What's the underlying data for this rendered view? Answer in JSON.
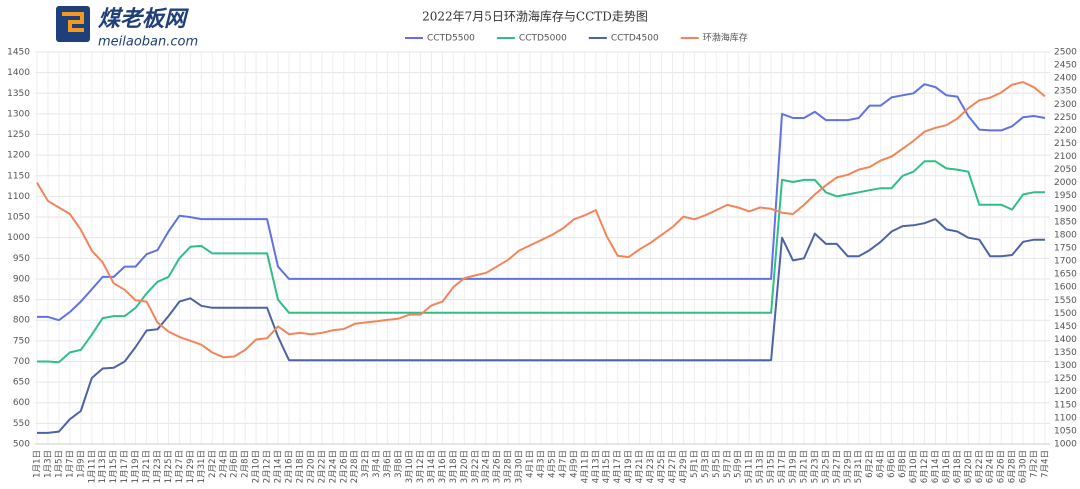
{
  "logo": {
    "name": "煤老板网",
    "url": "meilaoban.com"
  },
  "chart_data": {
    "type": "line",
    "title": "2022年7月5日环渤海库存与CCTD走势图",
    "categories": [
      "1月1日",
      "1月3日",
      "1月5日",
      "1月7日",
      "1月9日",
      "1月11日",
      "1月13日",
      "1月15日",
      "1月17日",
      "1月19日",
      "1月21日",
      "1月23日",
      "1月25日",
      "1月27日",
      "1月29日",
      "1月31日",
      "2月2日",
      "2月4日",
      "2月6日",
      "2月8日",
      "2月10日",
      "2月12日",
      "2月14日",
      "2月16日",
      "2月18日",
      "2月20日",
      "2月22日",
      "2月24日",
      "2月26日",
      "2月28日",
      "3月2日",
      "3月4日",
      "3月6日",
      "3月8日",
      "3月10日",
      "3月12日",
      "3月14日",
      "3月16日",
      "3月18日",
      "3月20日",
      "3月22日",
      "3月24日",
      "3月26日",
      "3月28日",
      "3月30日",
      "4月1日",
      "4月3日",
      "4月5日",
      "4月7日",
      "4月9日",
      "4月11日",
      "4月13日",
      "4月15日",
      "4月17日",
      "4月19日",
      "4月21日",
      "4月23日",
      "4月25日",
      "4月27日",
      "4月29日",
      "5月1日",
      "5月3日",
      "5月5日",
      "5月7日",
      "5月9日",
      "5月11日",
      "5月13日",
      "5月15日",
      "5月17日",
      "5月19日",
      "5月21日",
      "5月23日",
      "5月25日",
      "5月27日",
      "5月29日",
      "5月31日",
      "6月2日",
      "6月4日",
      "6月6日",
      "6月8日",
      "6月10日",
      "6月12日",
      "6月14日",
      "6月16日",
      "6月18日",
      "6月20日",
      "6月22日",
      "6月24日",
      "6月26日",
      "6月28日",
      "6月30日",
      "7月2日",
      "7月4日"
    ],
    "series": [
      {
        "name": "CCTD5500",
        "color": "#5f72e6",
        "values": [
          808,
          808,
          800,
          820,
          845,
          875,
          905,
          905,
          930,
          930,
          960,
          970,
          1015,
          1053,
          1050,
          1045,
          1045,
          1045,
          1045,
          1045,
          1045,
          1045,
          930,
          900,
          900,
          900,
          900,
          900,
          900,
          900,
          900,
          900,
          900,
          900,
          900,
          900,
          900,
          900,
          900,
          900,
          900,
          900,
          900,
          900,
          900,
          900,
          900,
          900,
          900,
          900,
          900,
          900,
          900,
          900,
          900,
          900,
          900,
          900,
          900,
          900,
          900,
          900,
          900,
          900,
          900,
          900,
          900,
          900,
          1300,
          1290,
          1290,
          1305,
          1285,
          1285,
          1285,
          1290,
          1320,
          1320,
          1340,
          1345,
          1350,
          1372,
          1365,
          1345,
          1342,
          1295,
          1262,
          1260,
          1260,
          1270,
          1292,
          1295,
          1290
        ]
      },
      {
        "name": "CCTD5000",
        "color": "#2fbf86",
        "values": [
          700,
          700,
          698,
          722,
          728,
          765,
          805,
          810,
          810,
          830,
          865,
          893,
          905,
          950,
          978,
          980,
          962,
          962,
          962,
          962,
          962,
          962,
          850,
          818,
          818,
          818,
          818,
          818,
          818,
          818,
          818,
          818,
          818,
          818,
          818,
          818,
          818,
          818,
          818,
          818,
          818,
          818,
          818,
          818,
          818,
          818,
          818,
          818,
          818,
          818,
          818,
          818,
          818,
          818,
          818,
          818,
          818,
          818,
          818,
          818,
          818,
          818,
          818,
          818,
          818,
          818,
          818,
          818,
          1140,
          1135,
          1140,
          1140,
          1110,
          1100,
          1105,
          1110,
          1115,
          1120,
          1120,
          1150,
          1160,
          1185,
          1185,
          1168,
          1165,
          1160,
          1080,
          1080,
          1080,
          1068,
          1105,
          1110,
          1110
        ]
      },
      {
        "name": "CCTD4500",
        "color": "#4e63a6",
        "values": [
          527,
          527,
          530,
          560,
          580,
          660,
          683,
          685,
          700,
          735,
          775,
          778,
          810,
          845,
          853,
          835,
          830,
          830,
          830,
          830,
          830,
          830,
          760,
          703,
          703,
          703,
          703,
          703,
          703,
          703,
          703,
          703,
          703,
          703,
          703,
          703,
          703,
          703,
          703,
          703,
          703,
          703,
          703,
          703,
          703,
          703,
          703,
          703,
          703,
          703,
          703,
          703,
          703,
          703,
          703,
          703,
          703,
          703,
          703,
          703,
          703,
          703,
          703,
          703,
          703,
          703,
          703,
          703,
          1000,
          945,
          950,
          1010,
          985,
          985,
          955,
          955,
          970,
          990,
          1015,
          1028,
          1030,
          1035,
          1045,
          1020,
          1015,
          1000,
          995,
          955,
          955,
          958,
          990,
          995,
          995
        ]
      },
      {
        "name": "环渤海库存",
        "color": "#f4845a",
        "axis": "y2",
        "values": [
          2000,
          1930,
          1905,
          1880,
          1820,
          1740,
          1695,
          1615,
          1590,
          1550,
          1545,
          1465,
          1430,
          1410,
          1395,
          1380,
          1350,
          1332,
          1335,
          1360,
          1400,
          1405,
          1450,
          1420,
          1425,
          1420,
          1425,
          1435,
          1440,
          1460,
          1465,
          1470,
          1475,
          1480,
          1495,
          1495,
          1530,
          1545,
          1600,
          1635,
          1645,
          1655,
          1680,
          1705,
          1740,
          1760,
          1780,
          1800,
          1825,
          1860,
          1875,
          1895,
          1795,
          1720,
          1715,
          1745,
          1770,
          1800,
          1830,
          1870,
          1860,
          1875,
          1895,
          1915,
          1905,
          1890,
          1905,
          1900,
          1885,
          1880,
          1915,
          1955,
          1990,
          2020,
          2030,
          2050,
          2060,
          2085,
          2100,
          2130,
          2160,
          2195,
          2210,
          2220,
          2245,
          2285,
          2315,
          2325,
          2345,
          2375,
          2385,
          2365,
          2330
        ]
      }
    ],
    "ylim": [
      500,
      1450
    ],
    "yticks": [
      500,
      550,
      600,
      650,
      700,
      750,
      800,
      850,
      900,
      950,
      1000,
      1050,
      1100,
      1150,
      1200,
      1250,
      1300,
      1350,
      1400,
      1450
    ],
    "y2lim": [
      1000,
      2500
    ],
    "y2ticks": [
      1000,
      1050,
      1100,
      1150,
      1200,
      1250,
      1300,
      1350,
      1400,
      1450,
      1500,
      1550,
      1600,
      1650,
      1700,
      1750,
      1800,
      1850,
      1900,
      1950,
      2000,
      2050,
      2100,
      2150,
      2200,
      2250,
      2300,
      2350,
      2400,
      2450,
      2500
    ],
    "grid": true,
    "legend": "top"
  }
}
